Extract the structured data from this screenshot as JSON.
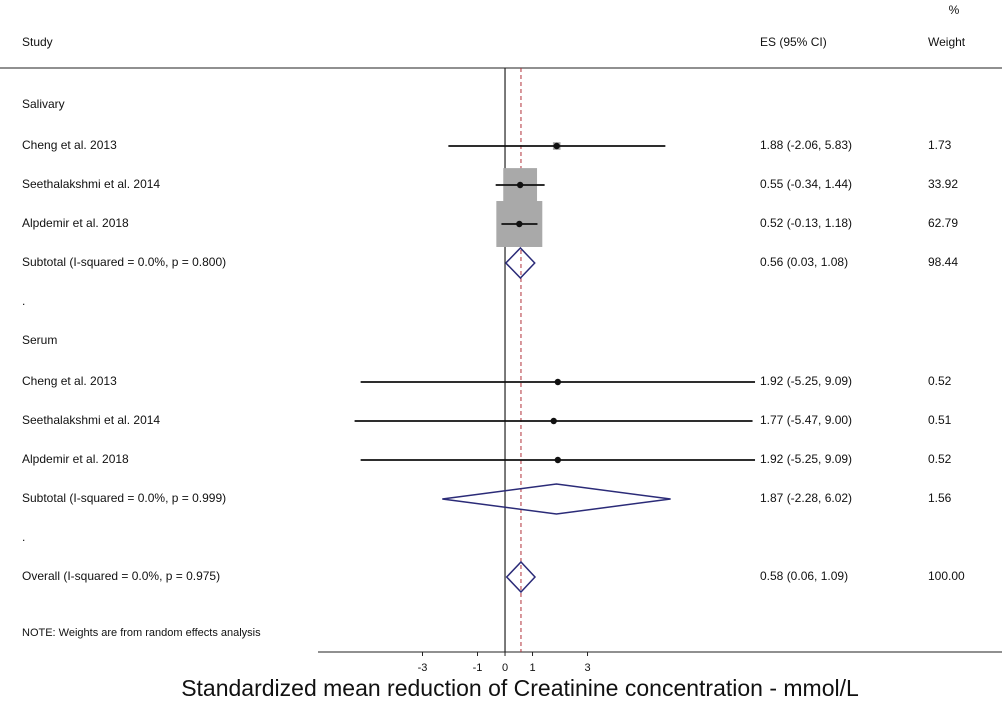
{
  "chart_data": {
    "type": "forest",
    "headers": {
      "study": "Study",
      "es": "ES (95% CI)",
      "weight_top": "%",
      "weight": "Weight"
    },
    "groups": [
      {
        "name": "Salivary",
        "studies": [
          {
            "label": "Cheng et al. 2013",
            "es": 1.88,
            "lo": -2.06,
            "hi": 5.83,
            "ci_label": "1.88 (-2.06, 5.83)",
            "weight": 1.73
          },
          {
            "label": "Seethalakshmi et al. 2014",
            "es": 0.55,
            "lo": -0.34,
            "hi": 1.44,
            "ci_label": "0.55 (-0.34, 1.44)",
            "weight": 33.92
          },
          {
            "label": "Alpdemir et al. 2018",
            "es": 0.52,
            "lo": -0.13,
            "hi": 1.18,
            "ci_label": "0.52 (-0.13, 1.18)",
            "weight": 62.79
          }
        ],
        "subtotal": {
          "label": "Subtotal  (I-squared = 0.0%, p = 0.800)",
          "es": 0.56,
          "lo": 0.03,
          "hi": 1.08,
          "ci_label": "0.56 (0.03, 1.08)",
          "weight": 98.44
        },
        "separator": "."
      },
      {
        "name": "Serum",
        "studies": [
          {
            "label": "Cheng et al. 2013",
            "es": 1.92,
            "lo": -5.25,
            "hi": 9.09,
            "ci_label": "1.92 (-5.25, 9.09)",
            "weight": 0.52
          },
          {
            "label": "Seethalakshmi et al. 2014",
            "es": 1.77,
            "lo": -5.47,
            "hi": 9.0,
            "ci_label": "1.77 (-5.47, 9.00)",
            "weight": 0.51
          },
          {
            "label": "Alpdemir et al. 2018",
            "es": 1.92,
            "lo": -5.25,
            "hi": 9.09,
            "ci_label": "1.92 (-5.25, 9.09)",
            "weight": 0.52
          }
        ],
        "subtotal": {
          "label": "Subtotal  (I-squared = 0.0%, p = 0.999)",
          "es": 1.87,
          "lo": -2.28,
          "hi": 6.02,
          "ci_label": "1.87 (-2.28, 6.02)",
          "weight": 1.56
        },
        "separator": "."
      }
    ],
    "overall": {
      "label": "Overall  (I-squared = 0.0%, p = 0.975)",
      "es": 0.58,
      "lo": 0.06,
      "hi": 1.09,
      "ci_label": "0.58 (0.06, 1.09)",
      "weight": 100,
      "weight_label": "100.00"
    },
    "note": "NOTE: Weights are from random effects analysis",
    "xlabel": "Standardized mean reduction of Creatinine concentration - mmol/L",
    "xlim": [
      -6.8,
      18.07
    ],
    "xticks": [
      -3,
      -1,
      0,
      1,
      3
    ]
  }
}
